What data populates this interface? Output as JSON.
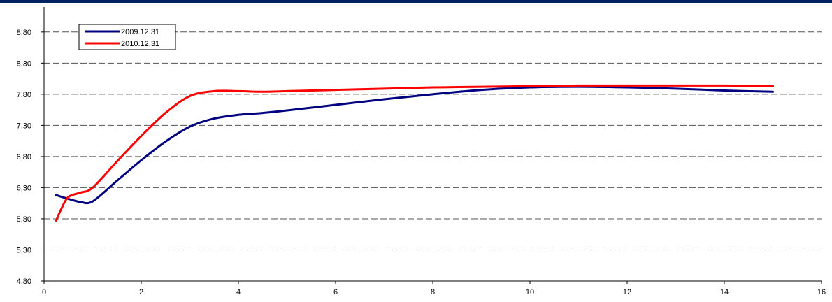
{
  "colors": {
    "top_band": "#002060",
    "grid": "#555555"
  },
  "chart_data": {
    "type": "line",
    "title": "",
    "xlabel": "",
    "ylabel": "",
    "xlim": [
      0,
      16
    ],
    "ylim": [
      4.8,
      9.0
    ],
    "grid": "horizontal dashed",
    "legend_position": "top-left",
    "x_ticks": [
      0,
      2,
      4,
      6,
      8,
      10,
      12,
      14,
      16
    ],
    "x_tick_labels": [
      "0",
      "2",
      "4",
      "6",
      "8",
      "10",
      "12",
      "14",
      "16"
    ],
    "y_ticks": [
      4.8,
      5.3,
      5.8,
      6.3,
      6.8,
      7.3,
      7.8,
      8.3,
      8.8
    ],
    "y_tick_labels": [
      "4,80",
      "5,30",
      "5,80",
      "6,30",
      "6,80",
      "7,30",
      "7,80",
      "8,30",
      "8,80"
    ],
    "series": [
      {
        "name": "2009.12.31",
        "color": "#000080",
        "x": [
          0.25,
          0.5,
          0.75,
          1.0,
          1.5,
          2.0,
          2.5,
          3.0,
          3.5,
          4.0,
          4.5,
          5.0,
          6.0,
          7.0,
          8.0,
          9.0,
          10.0,
          11.0,
          12.0,
          13.0,
          14.0,
          15.0
        ],
        "values": [
          6.18,
          6.12,
          6.07,
          6.08,
          6.41,
          6.74,
          7.04,
          7.28,
          7.41,
          7.47,
          7.5,
          7.54,
          7.63,
          7.72,
          7.8,
          7.87,
          7.91,
          7.92,
          7.91,
          7.89,
          7.86,
          7.84
        ]
      },
      {
        "name": "2010.12.31",
        "color": "#ff0000",
        "x": [
          0.25,
          0.35,
          0.5,
          0.75,
          1.0,
          1.5,
          2.0,
          2.5,
          3.0,
          3.5,
          4.0,
          4.5,
          5.0,
          6.0,
          7.0,
          8.0,
          9.0,
          10.0,
          11.0,
          12.0,
          13.0,
          14.0,
          15.0
        ],
        "values": [
          5.77,
          5.95,
          6.15,
          6.22,
          6.3,
          6.72,
          7.13,
          7.5,
          7.77,
          7.85,
          7.85,
          7.84,
          7.85,
          7.87,
          7.89,
          7.91,
          7.92,
          7.93,
          7.94,
          7.94,
          7.94,
          7.94,
          7.93
        ]
      }
    ]
  }
}
